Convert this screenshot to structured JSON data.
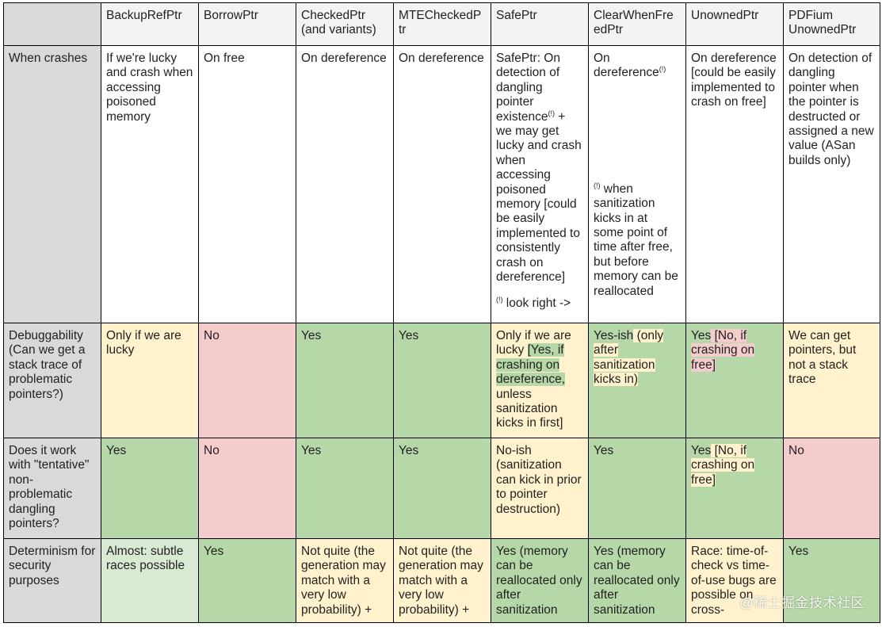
{
  "columns": [
    "BackupRefPtr",
    "BorrowPtr",
    "CheckedPtr\n(and variants)",
    "MTECheckedP\ntr",
    "SafePtr",
    "ClearWhenFre\nedPtr",
    "UnownedPtr",
    "PDFium\nUnownedPtr"
  ],
  "rows": {
    "crash": {
      "label": "When crashes",
      "backup": "If we're lucky and crash when accessing poisoned memory",
      "borrow": "On free",
      "checked": "On dereference",
      "mte": "On dereference",
      "safe_main": "SafePtr: On detection of dangling pointer existence",
      "safe_mark": "(!)",
      "safe_rest": " + we may get lucky and crash when accessing poisoned memory [could be easily implemented to consistently crash on dereference]",
      "safe_note_mark": "(!)",
      "safe_note": " look right ->",
      "clear_main": "On dereference",
      "clear_mark": "(!)",
      "clear_note_mark": "(!)",
      "clear_note": " when sanitization kicks in at some point of time after free, but before memory can be  reallocated",
      "unowned": "On dereference [could be easily implemented to crash on free]",
      "pdfium": "On detection of dangling pointer when the pointer is destructed or assigned a new value (ASan builds only)"
    },
    "debug": {
      "label": "Debuggability (Can we get a stack trace of problematic pointers?)",
      "backup": "Only if we are lucky",
      "borrow": "No",
      "checked": "Yes",
      "mte": "Yes",
      "safe_a": "Only if we are lucky ",
      "safe_b": "[Yes, if crashing on dereference,",
      "safe_c": " unless sanitization kicks in first]",
      "clear_a": "Yes-ish",
      "clear_b": " (only after sanitization kicks in)",
      "unowned_a": "Yes",
      "unowned_b": " [No, if crashing on free]",
      "pdfium": "We can get pointers, but not a stack trace"
    },
    "tentative": {
      "label": "Does it work with \"tentative\" non-problematic dangling pointers?",
      "backup": "Yes",
      "borrow": "No",
      "checked": "Yes",
      "mte": "Yes",
      "safe": "No-ish (sanitization can kick in prior to pointer destruction)",
      "clear": "Yes",
      "unowned_a": "Yes",
      "unowned_b": " [No, if crashing on free]",
      "pdfium": "No"
    },
    "determinism": {
      "label": "Determinism for security purposes",
      "backup": "Almost: subtle races possible",
      "borrow": "Yes",
      "checked": "Not quite (the generation may match with a very low probability) +",
      "mte": "Not quite (the generation may match with a very low probability) +",
      "safe": "Yes (memory can be reallocated only after sanitization",
      "clear": "Yes (memory can be reallocated only after sanitization",
      "unowned": "Race: time-of-check vs time-of-use bugs are possible on cross-",
      "pdfium": "Yes"
    }
  },
  "watermark": "@稀土掘金技术社区"
}
